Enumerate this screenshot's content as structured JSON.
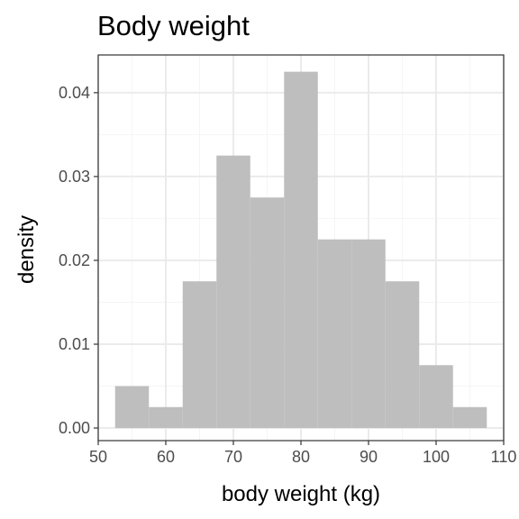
{
  "chart_data": {
    "type": "histogram",
    "title": "Body weight",
    "xlabel": "body weight (kg)",
    "ylabel": "density",
    "xlim": [
      50,
      110
    ],
    "ylim": [
      -0.0015,
      0.0445
    ],
    "xticks": [
      50,
      60,
      70,
      80,
      90,
      100,
      110
    ],
    "xtick_labels": [
      "50",
      "60",
      "70",
      "80",
      "90",
      "100",
      "110"
    ],
    "yticks": [
      0,
      0.01,
      0.02,
      0.03,
      0.04
    ],
    "ytick_labels": [
      "0.00",
      "0.01",
      "0.02",
      "0.03",
      "0.04"
    ],
    "grid": true,
    "bin_width": 5,
    "bins": [
      {
        "x0": 52.5,
        "x1": 57.5,
        "density": 0.005
      },
      {
        "x0": 57.5,
        "x1": 62.5,
        "density": 0.0025
      },
      {
        "x0": 62.5,
        "x1": 67.5,
        "density": 0.0175
      },
      {
        "x0": 67.5,
        "x1": 72.5,
        "density": 0.0325
      },
      {
        "x0": 72.5,
        "x1": 77.5,
        "density": 0.0275
      },
      {
        "x0": 77.5,
        "x1": 82.5,
        "density": 0.0425
      },
      {
        "x0": 82.5,
        "x1": 87.5,
        "density": 0.0225
      },
      {
        "x0": 87.5,
        "x1": 92.5,
        "density": 0.0225
      },
      {
        "x0": 92.5,
        "x1": 97.5,
        "density": 0.0175
      },
      {
        "x0": 97.5,
        "x1": 102.5,
        "density": 0.0075
      },
      {
        "x0": 102.5,
        "x1": 107.5,
        "density": 0.0025
      }
    ],
    "colors": {
      "bar_fill": "#bebebe",
      "grid_major": "#ebebeb",
      "grid_minor": "#f5f5f5",
      "panel_border": "#333333",
      "tick_text": "#4d4d4d"
    }
  }
}
